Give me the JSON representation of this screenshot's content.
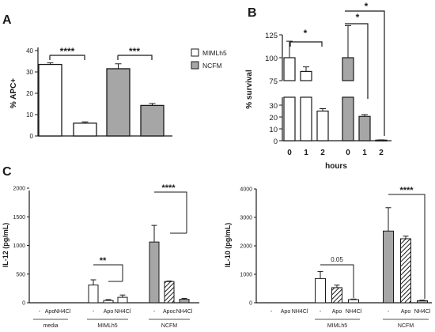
{
  "chart_data": [
    {
      "panel": "A",
      "type": "bar",
      "categories": [
        "MIMLh5",
        "MIMLh5",
        "NCFM",
        "NCFM"
      ],
      "values": [
        33.5,
        6.0,
        31.5,
        14.3
      ],
      "errors": [
        0.8,
        0.6,
        2.3,
        0.9
      ],
      "colors": [
        "#ffffff",
        "#ffffff",
        "#a6a6a6",
        "#a6a6a6"
      ],
      "ylabel": "% APC+",
      "yticks": [
        "0",
        "10",
        "20",
        "30",
        "40"
      ],
      "ylim": [
        0,
        40
      ],
      "legend": [
        {
          "label": "MIMLh5",
          "color": "#ffffff"
        },
        {
          "label": "NCFM",
          "color": "#a6a6a6"
        }
      ],
      "legend_placement": "right",
      "significance": [
        "****",
        "***"
      ]
    },
    {
      "panel": "B",
      "type": "bar",
      "categories": [
        "0",
        "1",
        "2",
        "0",
        "1",
        "2"
      ],
      "values": [
        100,
        85,
        25,
        100,
        20.5,
        0.5
      ],
      "errors": [
        18,
        5,
        2,
        35,
        1.5,
        0.2
      ],
      "colors": [
        "#ffffff",
        "#ffffff",
        "#ffffff",
        "#a6a6a6",
        "#a6a6a6",
        "#a6a6a6"
      ],
      "xlabel": "hours",
      "ylabel": "% survival",
      "yticks_lower": [
        "0",
        "10",
        "20",
        "30"
      ],
      "yticks_upper": [
        "75",
        "100",
        "125"
      ],
      "broken_axis": true,
      "significance": [
        "*",
        "*",
        "*"
      ]
    },
    {
      "panel": "C",
      "type": "bar",
      "ylabel": "IL-12 (pg/mL)",
      "yticks": [
        "0",
        "500",
        "1000",
        "1500",
        "2000"
      ],
      "ylim": [
        0,
        2000
      ],
      "tick_labels": [
        "-",
        "Apo",
        "NH4Cl",
        "-",
        "Apo",
        "NH4Cl",
        "-",
        "Apoc",
        "NH4Cl"
      ],
      "groups": [
        "media",
        "MIMLh5",
        "NCFM"
      ],
      "values": [
        0,
        0,
        0,
        310,
        40,
        95,
        1060,
        370,
        60
      ],
      "errors": [
        0,
        0,
        0,
        90,
        15,
        40,
        290,
        10,
        15
      ],
      "significance": [
        "**",
        "****"
      ]
    },
    {
      "panel": "C",
      "type": "bar",
      "ylabel": "IL-10 (pg/mL)",
      "yticks": [
        "0",
        "1000",
        "2000",
        "3000",
        "4000"
      ],
      "ylim": [
        0,
        4000
      ],
      "tick_labels": [
        "-",
        "Apo",
        "NH4Cl",
        "-",
        "Apo",
        "NH4Cl",
        "-",
        "Apo",
        "NH4Cl"
      ],
      "groups": [
        "MIMLh5",
        "NCFM"
      ],
      "values": [
        0,
        0,
        0,
        850,
        530,
        110,
        2520,
        2250,
        70
      ],
      "errors": [
        0,
        0,
        0,
        250,
        90,
        20,
        820,
        90,
        20
      ],
      "significance": [
        "0.05",
        "****"
      ]
    }
  ]
}
